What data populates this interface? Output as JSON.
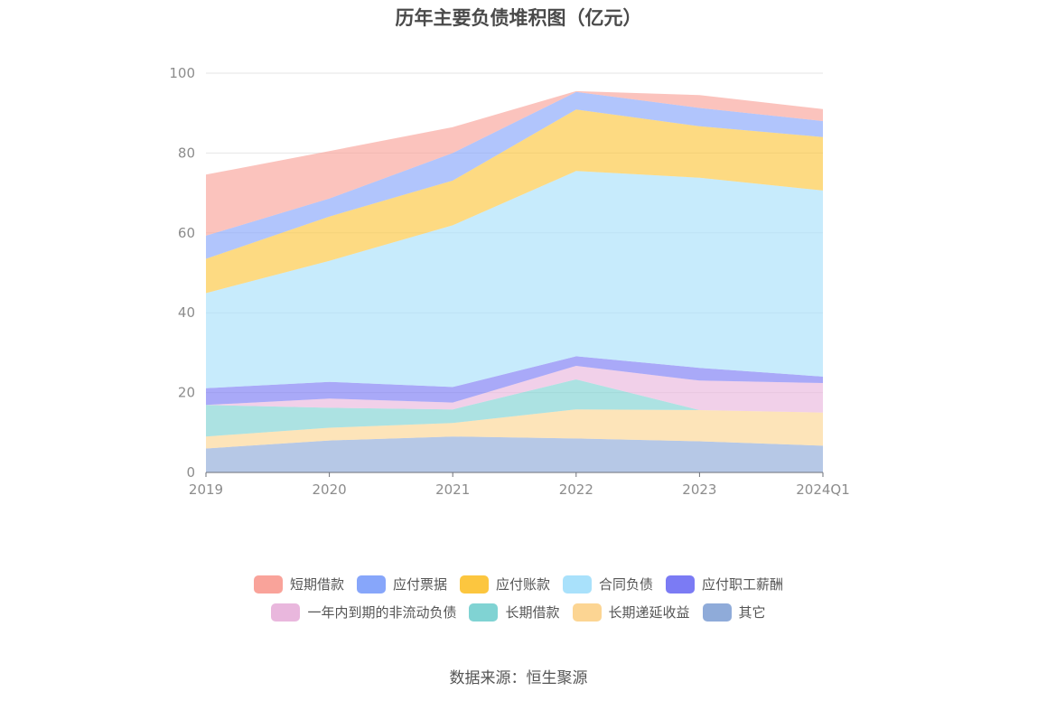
{
  "chart_data": {
    "type": "area",
    "stacked": true,
    "title": "历年主要负债堆积图（亿元）",
    "categories": [
      "2019",
      "2020",
      "2021",
      "2022",
      "2023",
      "2024Q1"
    ],
    "ylim": [
      0,
      100
    ],
    "yticks": [
      "0",
      "20",
      "40",
      "60",
      "80",
      "100"
    ],
    "grid": true,
    "legend_position": "bottom",
    "series": [
      {
        "name": "其它",
        "color": "#8fabd9",
        "values": [
          6.0,
          8.0,
          9.0,
          8.5,
          7.8,
          6.7
        ]
      },
      {
        "name": "长期递延收益",
        "color": "#fcd593",
        "values": [
          3.0,
          3.2,
          3.4,
          7.3,
          7.8,
          8.3
        ]
      },
      {
        "name": "长期借款",
        "color": "#80d3d3",
        "values": [
          7.9,
          5.0,
          3.4,
          7.5,
          0.0,
          0.0
        ]
      },
      {
        "name": "一年内到期的非流动负债",
        "color": "#e9b7dd",
        "values": [
          0.0,
          2.3,
          1.7,
          3.4,
          7.4,
          7.4
        ]
      },
      {
        "name": "应付职工薪酬",
        "color": "#7b7bf4",
        "values": [
          4.2,
          4.2,
          3.9,
          2.4,
          3.2,
          1.6
        ]
      },
      {
        "name": "合同负债",
        "color": "#a9e1fb",
        "values": [
          23.8,
          30.3,
          40.5,
          46.4,
          47.6,
          46.6
        ]
      },
      {
        "name": "应付账款",
        "color": "#fcc63f",
        "values": [
          8.6,
          11.1,
          11.2,
          15.4,
          12.9,
          13.4
        ]
      },
      {
        "name": "应付票据",
        "color": "#87a6fa",
        "values": [
          5.8,
          4.5,
          6.9,
          4.4,
          4.6,
          4.0
        ]
      },
      {
        "name": "短期借款",
        "color": "#f9a39a",
        "values": [
          15.3,
          11.9,
          6.5,
          0.2,
          3.2,
          3.0
        ]
      }
    ],
    "legend_rows": [
      [
        "短期借款",
        "应付票据",
        "应付账款",
        "合同负债",
        "应付职工薪酬"
      ],
      [
        "一年内到期的非流动负债",
        "长期借款",
        "长期递延收益",
        "其它"
      ]
    ],
    "source": "数据来源：恒生聚源"
  }
}
